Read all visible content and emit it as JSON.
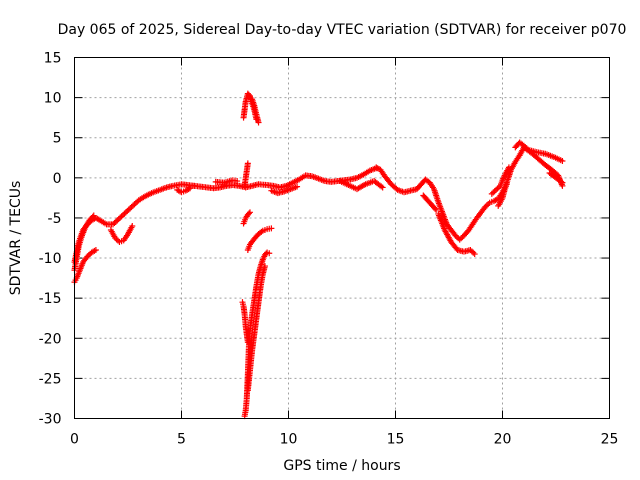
{
  "chart_data": {
    "type": "scatter",
    "title": "Day 065 of 2025, Sidereal Day-to-day VTEC variation (SDTVAR) for receiver p070",
    "xlabel": "GPS time / hours",
    "ylabel": "SDTVAR / TECUs",
    "xlim": [
      0,
      25
    ],
    "ylim": [
      -30,
      15
    ],
    "xticks": [
      0,
      5,
      10,
      15,
      20,
      25
    ],
    "yticks": [
      -30,
      -25,
      -20,
      -15,
      -10,
      -5,
      0,
      5,
      10,
      15
    ],
    "grid": true,
    "marker": "+",
    "color": "#ff0000",
    "series": [
      {
        "name": "SDTVAR",
        "tracks": [
          {
            "x": [
              0.0,
              0.2,
              0.4,
              0.6,
              0.8,
              1.0,
              1.2,
              1.5,
              1.8,
              2.0,
              2.2,
              2.4,
              2.6,
              2.8,
              3.0,
              3.3,
              3.6,
              4.0,
              4.3,
              4.6,
              5.0,
              5.3,
              5.6
            ],
            "y": [
              -10.5,
              -8.0,
              -6.5,
              -5.8,
              -5.3,
              -5.0,
              -5.3,
              -5.8,
              -5.8,
              -5.3,
              -4.8,
              -4.3,
              -3.8,
              -3.3,
              -2.8,
              -2.3,
              -1.9,
              -1.5,
              -1.2,
              -1.0,
              -0.8,
              -0.9,
              -1.0
            ]
          },
          {
            "x": [
              0.0,
              0.1,
              0.25,
              0.4,
              0.6,
              0.8,
              1.0
            ],
            "y": [
              -13.0,
              -12.5,
              -11.5,
              -10.5,
              -9.8,
              -9.3,
              -9.0
            ]
          },
          {
            "x": [
              0.0,
              0.1,
              0.2,
              0.35,
              0.5,
              0.7,
              0.9
            ],
            "y": [
              -11.5,
              -10.0,
              -8.5,
              -7.2,
              -6.2,
              -5.3,
              -4.7
            ]
          },
          {
            "x": [
              1.7,
              1.9,
              2.1,
              2.3,
              2.5,
              2.7
            ],
            "y": [
              -6.5,
              -7.5,
              -8.0,
              -7.8,
              -7.0,
              -6.0
            ]
          },
          {
            "x": [
              4.8,
              5.0,
              5.2,
              5.4
            ],
            "y": [
              -1.5,
              -1.8,
              -1.6,
              -1.3
            ]
          },
          {
            "x": [
              5.6,
              5.9,
              6.2,
              6.5,
              6.8,
              7.1,
              7.4,
              7.7,
              8.0,
              8.3,
              8.6,
              9.0,
              9.3,
              9.6,
              9.9,
              10.2,
              10.5,
              10.8,
              11.1,
              11.4,
              11.7,
              12.0,
              12.3,
              12.6,
              12.9,
              13.2,
              13.5,
              13.8,
              14.1
            ],
            "y": [
              -1.0,
              -1.1,
              -1.2,
              -1.3,
              -1.2,
              -1.0,
              -0.9,
              -1.0,
              -1.2,
              -1.0,
              -0.8,
              -0.9,
              -1.0,
              -1.2,
              -1.0,
              -0.6,
              -0.2,
              0.3,
              0.2,
              -0.1,
              -0.4,
              -0.5,
              -0.4,
              -0.3,
              -0.2,
              0.0,
              0.4,
              0.9,
              1.2
            ]
          },
          {
            "x": [
              6.6,
              7.0,
              7.4,
              7.6
            ],
            "y": [
              -0.5,
              -0.6,
              -0.3,
              -0.4
            ]
          },
          {
            "x": [
              9.2,
              9.5,
              9.8,
              10.1,
              10.4
            ],
            "y": [
              -1.6,
              -1.9,
              -1.7,
              -1.4,
              -1.1
            ]
          },
          {
            "x": [
              12.4,
              12.8,
              13.2,
              13.6,
              14.0,
              14.4
            ],
            "y": [
              -0.4,
              -0.9,
              -1.4,
              -0.8,
              -0.4,
              -1.2
            ]
          },
          {
            "x": [
              7.95,
              8.0,
              8.05,
              8.1,
              8.15,
              8.2,
              8.25,
              8.3,
              8.4,
              8.5,
              8.6,
              8.7,
              8.8,
              8.9,
              9.0,
              9.1
            ],
            "y": [
              -29.7,
              -29.0,
              -27.5,
              -24.5,
              -21.0,
              -19.0,
              -18.0,
              -17.0,
              -15.3,
              -13.5,
              -12.0,
              -11.0,
              -10.2,
              -9.6,
              -9.3,
              -9.4
            ]
          },
          {
            "x": [
              8.1,
              8.2,
              8.3,
              8.4,
              8.5,
              8.6,
              8.7,
              8.8,
              8.9
            ],
            "y": [
              -26.5,
              -24.0,
              -21.5,
              -19.5,
              -17.5,
              -15.5,
              -13.5,
              -12.0,
              -11.0
            ]
          },
          {
            "x": [
              7.85,
              7.9,
              7.95,
              8.0,
              8.1
            ],
            "y": [
              -15.5,
              -16.0,
              -17.0,
              -18.5,
              -20.5
            ]
          },
          {
            "x": [
              8.1,
              8.2,
              8.4,
              8.6,
              8.8,
              9.0,
              9.2
            ],
            "y": [
              -9.0,
              -8.3,
              -7.6,
              -7.0,
              -6.6,
              -6.4,
              -6.3
            ]
          },
          {
            "x": [
              7.9,
              8.0,
              8.1,
              8.2
            ],
            "y": [
              -5.7,
              -5.0,
              -4.6,
              -4.3
            ]
          },
          {
            "x": [
              7.95,
              8.1
            ],
            "y": [
              -1.0,
              1.8
            ]
          },
          {
            "x": [
              7.9,
              8.0,
              8.1,
              8.2,
              8.3,
              8.4,
              8.5
            ],
            "y": [
              7.5,
              9.5,
              10.5,
              10.2,
              9.3,
              8.5,
              7.3
            ]
          },
          {
            "x": [
              8.3,
              8.4,
              8.5,
              8.6
            ],
            "y": [
              9.8,
              9.0,
              7.9,
              6.9
            ]
          },
          {
            "x": [
              14.1,
              14.3,
              14.5,
              14.8,
              15.1,
              15.4,
              15.7,
              16.0,
              16.2,
              16.4,
              16.6,
              16.8,
              17.0,
              17.2,
              17.4,
              17.6,
              17.8,
              18.0,
              18.2,
              18.4,
              18.6,
              18.8,
              19.0,
              19.2,
              19.4,
              19.6,
              19.8,
              20.0,
              20.2,
              20.4,
              20.6,
              20.8,
              21.0,
              21.2,
              21.4,
              21.7,
              22.0,
              22.3,
              22.6,
              22.8
            ],
            "y": [
              1.3,
              1.0,
              0.2,
              -0.8,
              -1.5,
              -1.8,
              -1.6,
              -1.4,
              -0.8,
              -0.2,
              -0.6,
              -1.4,
              -3.0,
              -4.4,
              -5.8,
              -6.5,
              -7.2,
              -7.7,
              -7.2,
              -6.6,
              -5.8,
              -5.0,
              -4.3,
              -3.6,
              -3.1,
              -2.9,
              -2.6,
              -1.8,
              -0.6,
              1.0,
              2.0,
              2.8,
              3.8,
              3.4,
              3.0,
              2.3,
              1.6,
              1.0,
              0.3,
              -1.0
            ]
          },
          {
            "x": [
              17.0,
              17.3,
              17.6,
              17.9,
              18.2,
              18.5,
              18.7
            ],
            "y": [
              -4.5,
              -6.5,
              -8.0,
              -9.0,
              -9.2,
              -9.0,
              -9.5
            ]
          },
          {
            "x": [
              16.3,
              16.5,
              16.7,
              16.9
            ],
            "y": [
              -2.2,
              -2.8,
              -3.4,
              -4.0
            ]
          },
          {
            "x": [
              19.5,
              19.7,
              19.9,
              20.0,
              20.1,
              20.3
            ],
            "y": [
              -2.0,
              -1.5,
              -1.0,
              -0.3,
              0.3,
              1.3
            ]
          },
          {
            "x": [
              19.8,
              20.0,
              20.1,
              20.2
            ],
            "y": [
              -3.5,
              -2.5,
              -1.5,
              -0.8
            ]
          },
          {
            "x": [
              20.6,
              20.8,
              21.0,
              21.2,
              21.6,
              22.0,
              22.4,
              22.8
            ],
            "y": [
              3.8,
              4.4,
              4.0,
              3.5,
              3.2,
              3.0,
              2.6,
              2.1
            ]
          },
          {
            "x": [
              22.2,
              22.5,
              22.8
            ],
            "y": [
              0.6,
              0.0,
              -0.6
            ]
          }
        ]
      }
    ]
  }
}
